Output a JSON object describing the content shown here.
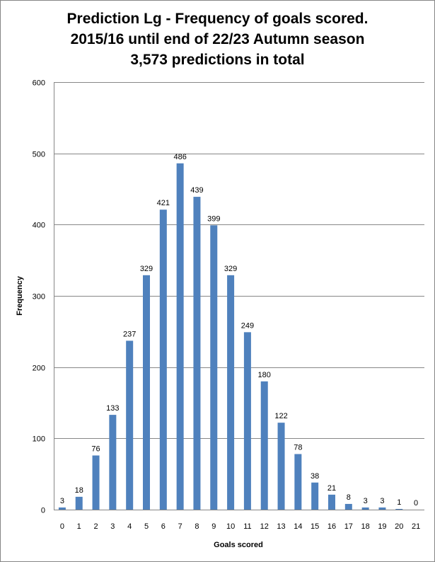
{
  "chart_data": {
    "type": "bar",
    "title_lines": [
      "Prediction Lg - Frequency of goals scored.",
      "2015/16 until end of 22/23 Autumn season",
      "3,573 predictions in total"
    ],
    "xlabel": "Goals scored",
    "ylabel": "Frequency",
    "categories": [
      "0",
      "1",
      "2",
      "3",
      "4",
      "5",
      "6",
      "7",
      "8",
      "9",
      "10",
      "11",
      "12",
      "13",
      "14",
      "15",
      "16",
      "17",
      "18",
      "19",
      "20",
      "21"
    ],
    "values": [
      3,
      18,
      76,
      133,
      237,
      329,
      421,
      486,
      439,
      399,
      329,
      249,
      180,
      122,
      78,
      38,
      21,
      8,
      3,
      3,
      1,
      0
    ],
    "ylim": [
      0,
      600
    ],
    "yticks": [
      0,
      100,
      200,
      300,
      400,
      500,
      600
    ],
    "grid": true,
    "legend": "none",
    "bar_color": "#4f81bd",
    "grid_color": "#878787"
  }
}
